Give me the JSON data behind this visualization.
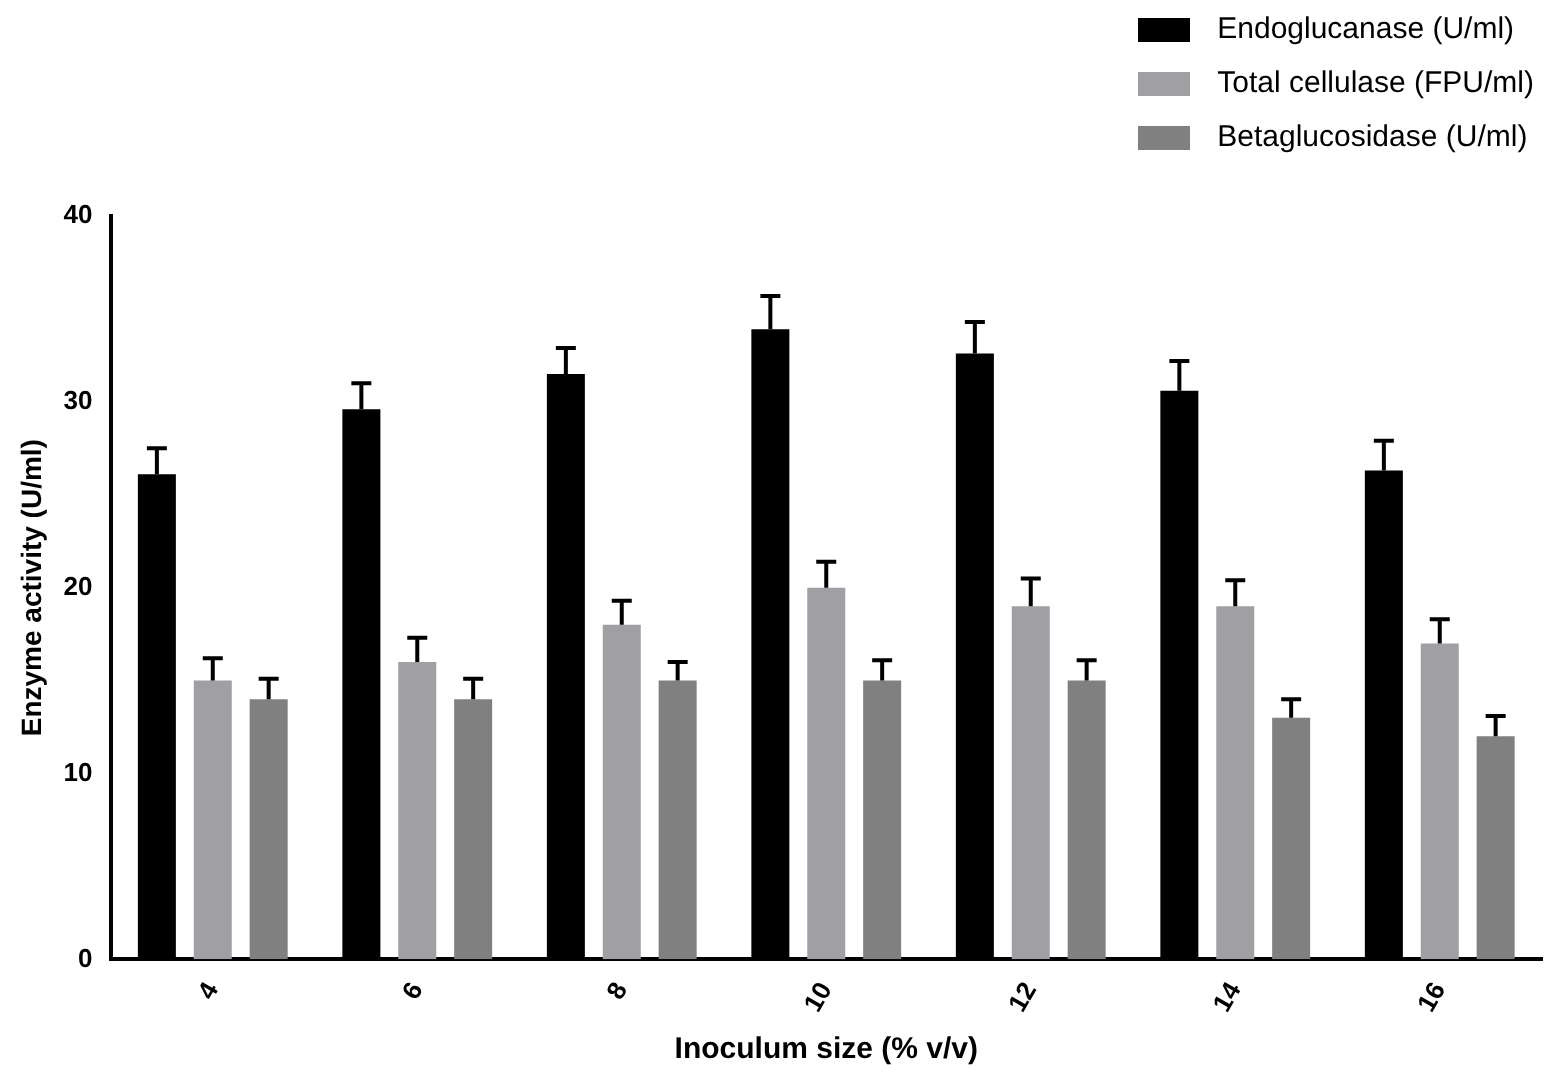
{
  "chart_data": {
    "type": "bar",
    "xlabel": "Inoculum size (% v/v)",
    "ylabel": "Enzyme activity (U/ml)",
    "categories": [
      "4",
      "6",
      "8",
      "10",
      "12",
      "14",
      "16"
    ],
    "series": [
      {
        "name": "Endoglucanase (U/ml)",
        "color": "#000000",
        "values": [
          26.1,
          29.6,
          31.5,
          33.9,
          32.6,
          30.6,
          26.3
        ],
        "errors": [
          [
            26.1,
            27.5
          ],
          [
            29.6,
            31.0
          ],
          [
            31.5,
            32.9
          ],
          [
            33.9,
            35.7
          ],
          [
            32.6,
            34.3
          ],
          [
            30.6,
            32.2
          ],
          [
            26.3,
            27.9
          ]
        ]
      },
      {
        "name": "Total cellulase (FPU/ml)",
        "color": "#a0a0a4",
        "values": [
          15,
          16,
          18,
          20,
          19,
          19,
          17
        ],
        "errors": [
          [
            15,
            16.2
          ],
          [
            16,
            17.3
          ],
          [
            18,
            19.3
          ],
          [
            20,
            21.4
          ],
          [
            19,
            20.5
          ],
          [
            19,
            20.4
          ],
          [
            17,
            18.3
          ]
        ]
      },
      {
        "name": "Betaglucosidase (U/ml)",
        "color": "#808080",
        "values": [
          14,
          14,
          15,
          15,
          15,
          13,
          12
        ],
        "errors": [
          [
            14,
            15.1
          ],
          [
            14,
            15.1
          ],
          [
            15,
            16.0
          ],
          [
            15,
            16.1
          ],
          [
            15,
            16.1
          ],
          [
            13,
            14.0
          ],
          [
            12,
            13.1
          ]
        ]
      }
    ],
    "ylim": [
      0,
      40
    ],
    "yticks": [
      0,
      10,
      20,
      30,
      40
    ],
    "grid": false,
    "legend": "top right"
  }
}
